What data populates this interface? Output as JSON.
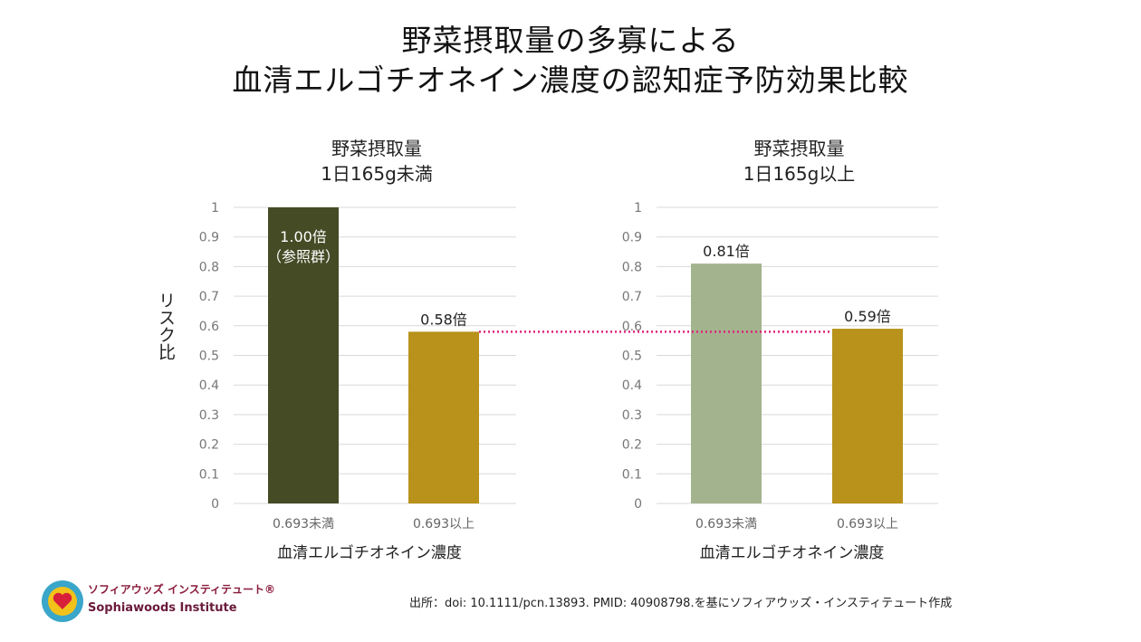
{
  "title_line1": "野菜摂取量の多寡による",
  "title_line2": "血清エルゴチオネイン濃度の認知症予防効果比較",
  "source": "出所：doi: 10.1111/pcn.13893. PMID: 40908798.を基にソフィアウッズ・インスティテュート作成",
  "logo": {
    "jp": "ソフィアウッズ インスティテュート®",
    "en": "Sophiawoods Institute"
  },
  "colors": {
    "dark": "#454B25",
    "gold": "#B8921A",
    "sage": "#A3B38E",
    "ref_line": "#E0207A",
    "grid": "#D9D9D9"
  },
  "chart_data": [
    {
      "type": "bar",
      "title": [
        "野菜摂取量",
        "1日165g未満"
      ],
      "ylabel": "リスク比",
      "xlabel": "血清エルゴチオネイン濃度",
      "ylim": [
        0,
        1
      ],
      "yticks": [
        "0",
        "0.1",
        "0.2",
        "0.3",
        "0.4",
        "0.5",
        "0.6",
        "0.7",
        "0.8",
        "0.9",
        "1"
      ],
      "categories": [
        "0.693未満",
        "0.693以上"
      ],
      "values": [
        1.0,
        0.58
      ],
      "labels": [
        [
          "1.00倍",
          "（参照群）"
        ],
        [
          "0.58倍"
        ]
      ],
      "bar_colors": [
        "#454B25",
        "#B8921A"
      ]
    },
    {
      "type": "bar",
      "title": [
        "野菜摂取量",
        "1日165g以上"
      ],
      "xlabel": "血清エルゴチオネイン濃度",
      "ylim": [
        0,
        1
      ],
      "yticks": [
        "0",
        "0.1",
        "0.2",
        "0.3",
        "0.4",
        "0.5",
        "0.6",
        "0.7",
        "0.8",
        "0.9",
        "1"
      ],
      "categories": [
        "0.693未満",
        "0.693以上"
      ],
      "values": [
        0.81,
        0.59
      ],
      "labels": [
        [
          "0.81倍"
        ],
        [
          "0.59倍"
        ]
      ],
      "bar_colors": [
        "#A3B38E",
        "#B8921A"
      ]
    }
  ],
  "reference_line_value": 0.58
}
